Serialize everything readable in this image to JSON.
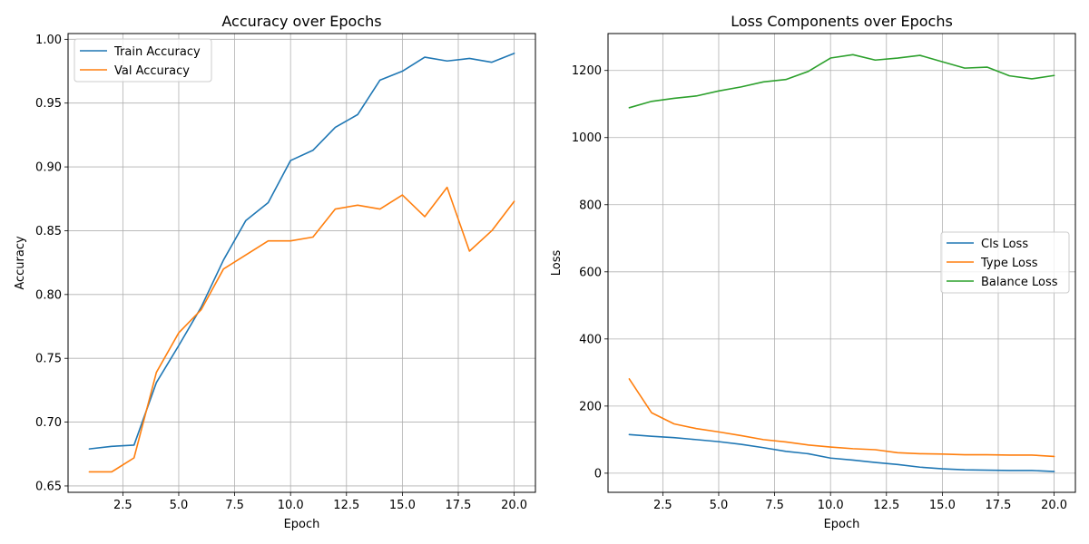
{
  "chart_data": [
    {
      "type": "line",
      "title": "Accuracy over Epochs",
      "xlabel": "Epoch",
      "ylabel": "Accuracy",
      "xlim": [
        0.05,
        20.95
      ],
      "ylim": [
        0.645,
        1.0045
      ],
      "xticks": [
        2.5,
        5.0,
        7.5,
        10.0,
        12.5,
        15.0,
        17.5,
        20.0
      ],
      "xtick_labels": [
        "2.5",
        "5.0",
        "7.5",
        "10.0",
        "12.5",
        "15.0",
        "17.5",
        "20.0"
      ],
      "yticks": [
        0.65,
        0.7,
        0.75,
        0.8,
        0.85,
        0.9,
        0.95,
        1.0
      ],
      "ytick_labels": [
        "0.65",
        "0.70",
        "0.75",
        "0.80",
        "0.85",
        "0.90",
        "0.95",
        "1.00"
      ],
      "grid": true,
      "legend_position": "upper-left",
      "x": [
        1,
        2,
        3,
        4,
        5,
        6,
        7,
        8,
        9,
        10,
        11,
        12,
        13,
        14,
        15,
        16,
        17,
        18,
        19,
        20
      ],
      "series": [
        {
          "name": "Train Accuracy",
          "color": "#1f77b4",
          "values": [
            0.679,
            0.681,
            0.682,
            0.731,
            0.76,
            0.79,
            0.827,
            0.858,
            0.872,
            0.905,
            0.913,
            0.931,
            0.941,
            0.968,
            0.975,
            0.986,
            0.983,
            0.985,
            0.982,
            0.989
          ]
        },
        {
          "name": "Val Accuracy",
          "color": "#ff7f0e",
          "values": [
            0.661,
            0.661,
            0.672,
            0.739,
            0.77,
            0.788,
            0.82,
            0.831,
            0.842,
            0.842,
            0.845,
            0.867,
            0.87,
            0.867,
            0.878,
            0.861,
            0.884,
            0.834,
            0.85,
            0.873
          ]
        }
      ]
    },
    {
      "type": "line",
      "title": "Loss Components over Epochs",
      "xlabel": "Epoch",
      "ylabel": "Loss",
      "xlim": [
        0.05,
        20.95
      ],
      "ylim": [
        -57,
        1310
      ],
      "xticks": [
        2.5,
        5.0,
        7.5,
        10.0,
        12.5,
        15.0,
        17.5,
        20.0
      ],
      "xtick_labels": [
        "2.5",
        "5.0",
        "7.5",
        "10.0",
        "12.5",
        "15.0",
        "17.5",
        "20.0"
      ],
      "yticks": [
        0,
        200,
        400,
        600,
        800,
        1000,
        1200
      ],
      "ytick_labels": [
        "0",
        "200",
        "400",
        "600",
        "800",
        "1000",
        "1200"
      ],
      "grid": true,
      "legend_position": "center-right",
      "x": [
        1,
        2,
        3,
        4,
        5,
        6,
        7,
        8,
        9,
        10,
        11,
        12,
        13,
        14,
        15,
        16,
        17,
        18,
        19,
        20
      ],
      "series": [
        {
          "name": "Cls Loss",
          "color": "#1f77b4",
          "values": [
            115,
            110,
            106,
            100,
            94,
            86,
            76,
            65,
            58,
            45,
            39,
            32,
            26,
            18,
            13,
            10,
            9,
            8,
            8,
            5
          ]
        },
        {
          "name": "Type Loss",
          "color": "#ff7f0e",
          "values": [
            281,
            180,
            147,
            133,
            123,
            112,
            100,
            93,
            84,
            78,
            73,
            70,
            61,
            58,
            57,
            55,
            55,
            54,
            54,
            50
          ]
        },
        {
          "name": "Balance Loss",
          "color": "#2ca02c",
          "values": [
            1089,
            1108,
            1117,
            1124,
            1139,
            1151,
            1166,
            1173,
            1197,
            1237,
            1247,
            1231,
            1237,
            1245,
            1226,
            1207,
            1210,
            1184,
            1175,
            1185
          ]
        }
      ]
    }
  ]
}
